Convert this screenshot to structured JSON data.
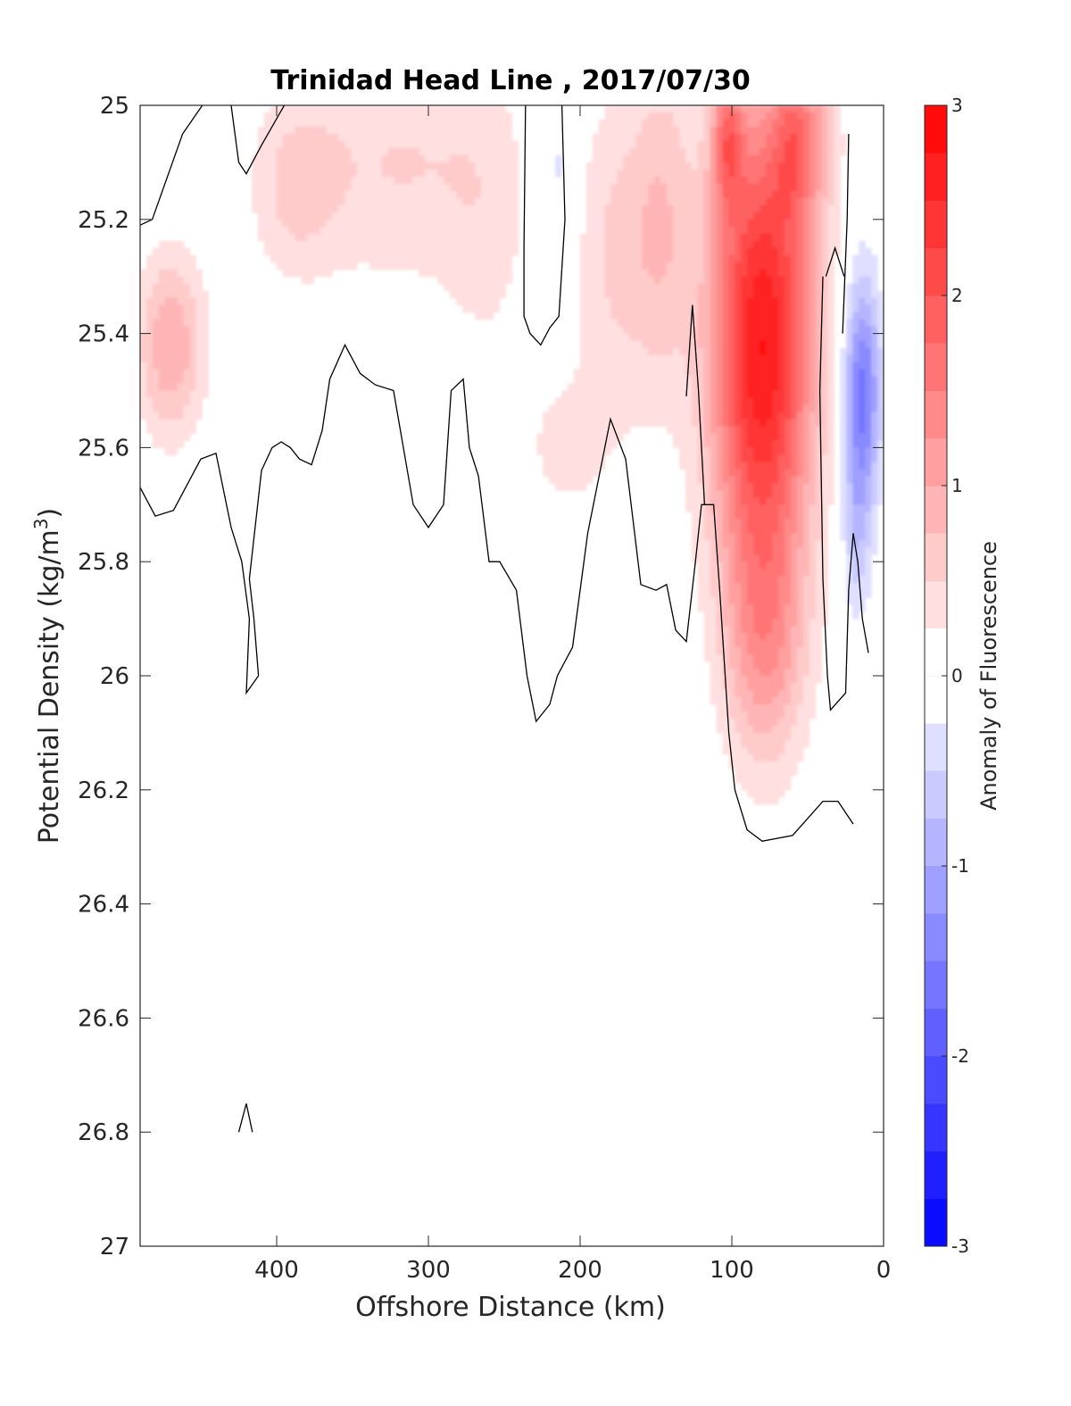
{
  "chart_data": {
    "type": "contour",
    "title": "Trinidad Head Line , 2017/07/30",
    "xlabel": "Offshore Distance (km)",
    "ylabel_main": "Potential Density (kg/m",
    "ylabel_sup": "3",
    "ylabel_close": ")",
    "xlim": [
      490,
      0
    ],
    "ylim": [
      27,
      25
    ],
    "x_reversed": true,
    "y_reversed": true,
    "xticks": [
      {
        "value": 400,
        "label": "400"
      },
      {
        "value": 300,
        "label": "300"
      },
      {
        "value": 200,
        "label": "200"
      },
      {
        "value": 100,
        "label": "100"
      },
      {
        "value": 0,
        "label": "0"
      }
    ],
    "yticks": [
      {
        "value": 25,
        "label": "25"
      },
      {
        "value": 25.2,
        "label": "25.2"
      },
      {
        "value": 25.4,
        "label": "25.4"
      },
      {
        "value": 25.6,
        "label": "25.6"
      },
      {
        "value": 25.8,
        "label": "25.8"
      },
      {
        "value": 26,
        "label": "26"
      },
      {
        "value": 26.2,
        "label": "26.2"
      },
      {
        "value": 26.4,
        "label": "26.4"
      },
      {
        "value": 26.6,
        "label": "26.6"
      },
      {
        "value": 26.8,
        "label": "26.8"
      },
      {
        "value": 27,
        "label": "27"
      }
    ],
    "colorbar": {
      "label": "Anomaly of Fluorescence",
      "range": [
        -3,
        3
      ],
      "levels": 24,
      "ticks": [
        {
          "value": 3,
          "label": "3"
        },
        {
          "value": 2,
          "label": "2"
        },
        {
          "value": 1,
          "label": "1"
        },
        {
          "value": 0,
          "label": "0"
        },
        {
          "value": -1,
          "label": "-1"
        },
        {
          "value": -2,
          "label": "-2"
        },
        {
          "value": -3,
          "label": "-3"
        }
      ],
      "positive_color": "#ff0000",
      "negative_color": "#0000ff",
      "zero_color": "#ffffff"
    },
    "anomaly_features": [
      {
        "name": "west surface patch",
        "x_center": 470,
        "y_center": 25.42,
        "x_halfwidth": 22,
        "y_halfwidth": 0.16,
        "peak": 1.0
      },
      {
        "name": "patch near 385 km",
        "x_center": 387,
        "y_center": 25.14,
        "x_halfwidth": 30,
        "y_halfwidth": 0.16,
        "peak": 0.55
      },
      {
        "name": "patch near 320 km",
        "x_center": 320,
        "y_center": 25.1,
        "x_halfwidth": 60,
        "y_halfwidth": 0.22,
        "peak": 0.5
      },
      {
        "name": "patch near 260 km",
        "x_center": 262,
        "y_center": 25.2,
        "x_halfwidth": 30,
        "y_halfwidth": 0.28,
        "peak": 0.3
      },
      {
        "name": "weak negative near 215 km",
        "x_center": 215,
        "y_center": 25.12,
        "x_halfwidth": 11,
        "y_halfwidth": 0.18,
        "peak": -0.35
      },
      {
        "name": "patch near 210 km deep",
        "x_center": 210,
        "y_center": 25.6,
        "x_halfwidth": 35,
        "y_halfwidth": 0.16,
        "peak": 0.3
      },
      {
        "name": "patch near 175 km",
        "x_center": 175,
        "y_center": 25.25,
        "x_halfwidth": 27,
        "y_halfwidth": 0.28,
        "peak": 0.55
      },
      {
        "name": "patch near 145 km",
        "x_center": 145,
        "y_center": 25.2,
        "x_halfwidth": 20,
        "y_halfwidth": 0.3,
        "peak": 0.6
      },
      {
        "name": "strong core",
        "x_center": 80,
        "y_center": 25.42,
        "x_halfwidth": 34,
        "y_halfwidth": 0.42,
        "peak": 2.75
      },
      {
        "name": "core deep tail",
        "x_center": 78,
        "y_center": 25.95,
        "x_halfwidth": 26,
        "y_halfwidth": 0.22,
        "peak": 0.9
      },
      {
        "name": "upper lobe 1",
        "x_center": 103,
        "y_center": 25.06,
        "x_halfwidth": 10,
        "y_halfwidth": 0.12,
        "peak": 1.2
      },
      {
        "name": "upper lobe 2",
        "x_center": 58,
        "y_center": 25.06,
        "x_halfwidth": 14,
        "y_halfwidth": 0.14,
        "peak": 1.1
      },
      {
        "name": "near-shore surface patch",
        "x_center": 40,
        "y_center": 25.05,
        "x_halfwidth": 12,
        "y_halfwidth": 0.12,
        "peak": 0.5
      },
      {
        "name": "near-shore negative",
        "x_center": 14,
        "y_center": 25.5,
        "x_halfwidth": 12,
        "y_halfwidth": 0.2,
        "peak": -1.6
      },
      {
        "name": "near-shore negative deep",
        "x_center": 18,
        "y_center": 25.75,
        "x_halfwidth": 10,
        "y_halfwidth": 0.16,
        "peak": -0.6
      }
    ],
    "zero_contours": [
      {
        "name": "western contour",
        "points": [
          [
            490,
            25.21
          ],
          [
            482,
            25.2
          ],
          [
            462,
            25.05
          ],
          [
            449,
            25.0
          ]
        ]
      },
      {
        "name": "upper notch",
        "points": [
          [
            430,
            25.0
          ],
          [
            425,
            25.1
          ],
          [
            420,
            25.12
          ],
          [
            410,
            25.07
          ],
          [
            395,
            25.0
          ]
        ]
      },
      {
        "name": "main contour",
        "points": [
          [
            490,
            25.67
          ],
          [
            480,
            25.72
          ],
          [
            468,
            25.71
          ],
          [
            450,
            25.62
          ],
          [
            440,
            25.61
          ],
          [
            430,
            25.74
          ],
          [
            423,
            25.8
          ],
          [
            418,
            25.9
          ],
          [
            420,
            26.03
          ],
          [
            412,
            26.0
          ],
          [
            415,
            25.9
          ],
          [
            418,
            25.83
          ],
          [
            410,
            25.64
          ],
          [
            403,
            25.6
          ],
          [
            397,
            25.59
          ],
          [
            391,
            25.6
          ],
          [
            385,
            25.62
          ],
          [
            377,
            25.63
          ],
          [
            370,
            25.57
          ],
          [
            365,
            25.48
          ],
          [
            355,
            25.42
          ],
          [
            345,
            25.47
          ],
          [
            335,
            25.49
          ],
          [
            323,
            25.5
          ],
          [
            310,
            25.7
          ],
          [
            300,
            25.74
          ],
          [
            290,
            25.7
          ],
          [
            285,
            25.5
          ],
          [
            277,
            25.48
          ],
          [
            273,
            25.6
          ],
          [
            267,
            25.65
          ],
          [
            260,
            25.8
          ],
          [
            253,
            25.8
          ],
          [
            242,
            25.85
          ],
          [
            235,
            26.0
          ],
          [
            229,
            26.08
          ],
          [
            220,
            26.05
          ],
          [
            215,
            26.0
          ],
          [
            205,
            25.95
          ],
          [
            195,
            25.75
          ],
          [
            180,
            25.55
          ],
          [
            170,
            25.62
          ],
          [
            160,
            25.84
          ],
          [
            150,
            25.85
          ],
          [
            143,
            25.84
          ],
          [
            137,
            25.92
          ],
          [
            130,
            25.94
          ],
          [
            124,
            25.8
          ],
          [
            120,
            25.7
          ],
          [
            112,
            25.7
          ],
          [
            108,
            25.85
          ],
          [
            102,
            26.1
          ],
          [
            98,
            26.2
          ],
          [
            90,
            26.27
          ],
          [
            80,
            26.29
          ],
          [
            60,
            26.28
          ],
          [
            50,
            26.25
          ],
          [
            40,
            26.22
          ],
          [
            30,
            26.22
          ],
          [
            20,
            26.26
          ]
        ]
      },
      {
        "name": "band near 220 km",
        "points": [
          [
            236,
            25.0
          ],
          [
            237,
            25.25
          ],
          [
            237,
            25.37
          ],
          [
            233,
            25.4
          ],
          [
            226,
            25.42
          ],
          [
            220,
            25.39
          ],
          [
            214,
            25.37
          ],
          [
            210,
            25.2
          ],
          [
            212,
            25.0
          ]
        ]
      },
      {
        "name": "contour near 120 km",
        "points": [
          [
            130,
            25.51
          ],
          [
            126,
            25.35
          ],
          [
            122,
            25.5
          ],
          [
            118,
            25.7
          ]
        ]
      },
      {
        "name": "near-shore contour 1",
        "points": [
          [
            40,
            25.3
          ],
          [
            42,
            25.5
          ],
          [
            40,
            25.83
          ],
          [
            37,
            26.0
          ],
          [
            35,
            26.06
          ],
          [
            25,
            26.03
          ],
          [
            23,
            25.85
          ],
          [
            20,
            25.75
          ],
          [
            17,
            25.8
          ],
          [
            14,
            25.9
          ],
          [
            10,
            25.96
          ]
        ]
      },
      {
        "name": "near-shore contour 2",
        "points": [
          [
            26,
            25.3
          ],
          [
            32,
            25.25
          ],
          [
            38,
            25.3
          ]
        ]
      },
      {
        "name": "near-shore vertical",
        "points": [
          [
            23,
            25.05
          ],
          [
            24,
            25.2
          ],
          [
            27,
            25.4
          ]
        ]
      },
      {
        "name": "deep small contour",
        "points": [
          [
            425,
            26.8
          ],
          [
            420,
            26.75
          ],
          [
            416,
            26.8
          ]
        ]
      }
    ]
  }
}
